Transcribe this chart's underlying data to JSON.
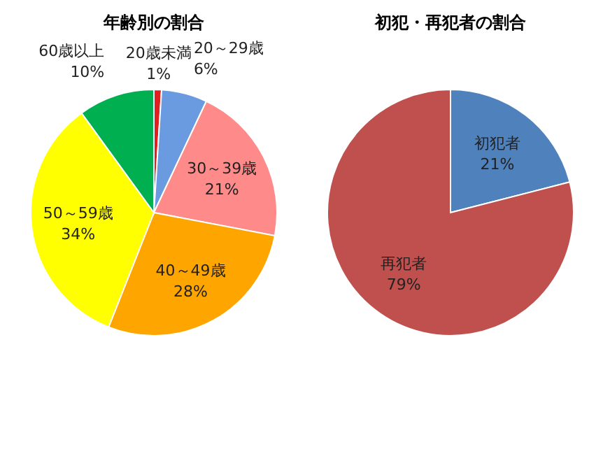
{
  "chart_data": [
    {
      "type": "pie",
      "title": "年齢別の割合",
      "categories": [
        "20歳未満",
        "20～29歳",
        "30～39歳",
        "40～49歳",
        "50～59歳",
        "60歳以上"
      ],
      "values": [
        1,
        6,
        21,
        28,
        34,
        10
      ],
      "value_labels": [
        "1%",
        "6%",
        "21%",
        "28%",
        "34%",
        "10%"
      ],
      "colors": [
        "#e02020",
        "#6a9ae0",
        "#ff8a8a",
        "#ffa500",
        "#ffff00",
        "#00b050"
      ]
    },
    {
      "type": "pie",
      "title": "初犯・再犯者の割合",
      "categories": [
        "初犯者",
        "再犯者"
      ],
      "values": [
        21,
        79
      ],
      "value_labels": [
        "21%",
        "79%"
      ],
      "colors": [
        "#4f81bd",
        "#c0504d"
      ]
    }
  ]
}
